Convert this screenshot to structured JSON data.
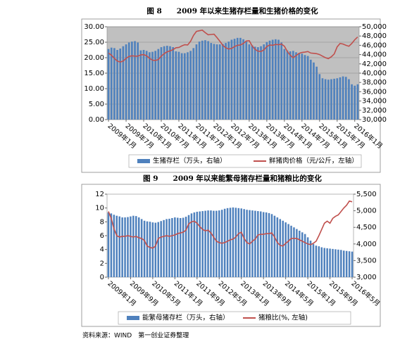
{
  "chart_data": [
    {
      "type": "combo",
      "title": "图 8　　2009 年以来生猪存栏量和生猪价格的变化",
      "categories": [
        "2009年1月",
        null,
        null,
        null,
        null,
        null,
        "2009年7月",
        null,
        null,
        null,
        null,
        null,
        "2010年1月",
        null,
        null,
        null,
        null,
        null,
        "2010年7月",
        null,
        null,
        null,
        null,
        null,
        "2011年1月",
        null,
        null,
        null,
        null,
        null,
        "2011年7月",
        null,
        null,
        null,
        null,
        null,
        "2012年1月",
        null,
        null,
        null,
        null,
        null,
        "2012年7月",
        null,
        null,
        null,
        null,
        null,
        "2013年1月",
        null,
        null,
        null,
        null,
        null,
        "2013年7月",
        null,
        null,
        null,
        null,
        null,
        "2014年1月",
        null,
        null,
        null,
        null,
        null,
        "2014年7月",
        null,
        null,
        null,
        null,
        null,
        "2015年1月",
        null,
        null,
        null,
        null,
        null,
        "2015年7月",
        null,
        null,
        null,
        null,
        null,
        "2016年1月",
        null
      ],
      "series": [
        {
          "name": "生猪存栏（万头，右轴）",
          "type": "bar",
          "axis": "y2",
          "color": "#4f81bd",
          "values": [
            45200,
            45500,
            45400,
            45000,
            45300,
            45800,
            46200,
            46600,
            46800,
            46900,
            46600,
            44900,
            45000,
            44800,
            44500,
            44600,
            44800,
            45200,
            45600,
            45800,
            45900,
            45800,
            45600,
            44700,
            44600,
            44300,
            44300,
            44500,
            44800,
            45400,
            46200,
            46800,
            47000,
            47100,
            46900,
            46500,
            46300,
            46200,
            46200,
            46300,
            46500,
            46800,
            47200,
            47400,
            47600,
            47600,
            47300,
            46800,
            46200,
            46000,
            45700,
            45600,
            45800,
            46200,
            46700,
            47000,
            47200,
            47300,
            47200,
            46600,
            45200,
            44900,
            44700,
            44800,
            44500,
            44300,
            44200,
            43900,
            43700,
            42900,
            42300,
            41400,
            39800,
            38900,
            38700,
            38600,
            38700,
            38800,
            38900,
            39100,
            39300,
            39200,
            38700,
            37600,
            37300,
            37600
          ]
        },
        {
          "name": "鲜猪肉价格（元/公斤，左轴）",
          "type": "line",
          "color": "#c0504d",
          "values": [
            21.5,
            20.8,
            19.8,
            18.9,
            18.6,
            18.9,
            19.8,
            20.4,
            20.6,
            20.5,
            20.5,
            20.9,
            21.0,
            20.6,
            19.8,
            19.2,
            19.1,
            19.4,
            20.5,
            21.3,
            21.9,
            22.2,
            22.6,
            23.2,
            23.3,
            23.8,
            24.2,
            24.1,
            25.3,
            27.2,
            28.5,
            28.7,
            28.9,
            28.1,
            27.4,
            27.5,
            27.6,
            26.5,
            25.3,
            24.0,
            23.2,
            22.8,
            23.0,
            23.6,
            24.0,
            24.1,
            24.6,
            25.4,
            25.5,
            23.8,
            22.7,
            22.1,
            22.0,
            22.5,
            23.6,
            24.1,
            24.0,
            24.3,
            24.2,
            24.4,
            23.7,
            22.0,
            20.8,
            20.0,
            20.7,
            21.4,
            21.7,
            21.8,
            22.0,
            21.5,
            21.4,
            21.3,
            21.0,
            20.5,
            20.0,
            19.7,
            20.3,
            21.2,
            23.5,
            24.6,
            24.4,
            24.0,
            23.7,
            24.6,
            25.8,
            26.7
          ]
        }
      ],
      "ylim": [
        0,
        30
      ],
      "yticks": [
        {
          "value": 0,
          "label": "0.00"
        },
        {
          "value": 5,
          "label": "5.00"
        },
        {
          "value": 10,
          "label": "10.00"
        },
        {
          "value": 15,
          "label": "15.00"
        },
        {
          "value": 20,
          "label": "20.00"
        },
        {
          "value": 25,
          "label": "25.00"
        },
        {
          "value": 30,
          "label": "30.00"
        }
      ],
      "y2lim": [
        30000,
        50000
      ],
      "y2ticks": [
        {
          "value": 30000,
          "label": "30,000"
        },
        {
          "value": 32000,
          "label": "32,000"
        },
        {
          "value": 34000,
          "label": "34,000"
        },
        {
          "value": 36000,
          "label": "36,000"
        },
        {
          "value": 38000,
          "label": "38,000"
        },
        {
          "value": 40000,
          "label": "40,000"
        },
        {
          "value": 42000,
          "label": "42,000"
        },
        {
          "value": 44000,
          "label": "44,000"
        },
        {
          "value": 46000,
          "label": "46,000"
        },
        {
          "value": 48000,
          "label": "48,000"
        },
        {
          "value": 50000,
          "label": "50,000"
        }
      ],
      "grid": true,
      "legend": "bottom"
    },
    {
      "type": "combo",
      "title": "图 9　　2009 年以来能繁母猪存栏量和猪粮比的变化",
      "categories": [
        "2009年1月",
        null,
        null,
        null,
        null,
        null,
        null,
        null,
        "2009年9月",
        null,
        null,
        null,
        null,
        null,
        null,
        null,
        "2010年5月",
        null,
        null,
        null,
        null,
        null,
        null,
        null,
        "2011年1月",
        null,
        null,
        null,
        null,
        null,
        null,
        null,
        "2011年9月",
        null,
        null,
        null,
        null,
        null,
        null,
        null,
        "2012年5月",
        null,
        null,
        null,
        null,
        null,
        null,
        null,
        "2013年1月",
        null,
        null,
        null,
        null,
        null,
        null,
        null,
        "2013年9月",
        null,
        null,
        null,
        null,
        null,
        null,
        null,
        "2014年5月",
        null,
        null,
        null,
        null,
        null,
        null,
        null,
        "2015年1月",
        null,
        null,
        null,
        null,
        null,
        null,
        null,
        "2015年9月",
        null,
        null,
        null,
        null,
        null,
        null,
        null,
        "2016年5月"
      ],
      "series": [
        {
          "name": "能繁母猪存栏（万头，右轴）",
          "type": "bar",
          "axis": "y2",
          "color": "#4f81bd",
          "values": [
            4950,
            4920,
            4880,
            4850,
            4830,
            4800,
            4800,
            4810,
            4830,
            4850,
            4840,
            4800,
            4750,
            4700,
            4680,
            4670,
            4650,
            4640,
            4660,
            4690,
            4720,
            4750,
            4760,
            4780,
            4800,
            4790,
            4780,
            4790,
            4820,
            4870,
            4920,
            4950,
            4970,
            4980,
            4990,
            5000,
            5010,
            5010,
            5000,
            5000,
            5010,
            5030,
            5060,
            5080,
            5090,
            5100,
            5090,
            5080,
            5070,
            5050,
            5030,
            5020,
            5010,
            5000,
            4990,
            4980,
            4960,
            4950,
            4930,
            4900,
            4850,
            4800,
            4750,
            4700,
            4650,
            4600,
            4550,
            4500,
            4450,
            4400,
            4350,
            4300,
            4200,
            4100,
            4000,
            3950,
            3930,
            3900,
            3880,
            3870,
            3860,
            3850,
            3840,
            3830,
            3820,
            3800,
            3790,
            3780,
            3770
          ]
        },
        {
          "name": "猪粮比(%, 左轴)",
          "type": "line",
          "color": "#c0504d",
          "values": [
            9.5,
            8.5,
            7.0,
            6.0,
            5.8,
            5.9,
            5.9,
            6.0,
            5.9,
            5.8,
            5.9,
            5.7,
            5.6,
            5.3,
            4.5,
            4.3,
            4.2,
            4.5,
            5.6,
            5.8,
            5.9,
            6.0,
            5.9,
            6.0,
            6.1,
            6.3,
            6.4,
            6.5,
            6.8,
            7.7,
            8.0,
            8.1,
            7.8,
            7.3,
            6.9,
            6.7,
            6.8,
            6.4,
            5.8,
            5.2,
            5.0,
            4.9,
            5.0,
            5.2,
            5.4,
            5.5,
            5.8,
            6.3,
            6.5,
            5.6,
            5.0,
            4.8,
            5.2,
            5.5,
            6.1,
            6.2,
            6.2,
            6.3,
            6.3,
            6.4,
            5.8,
            5.0,
            4.6,
            4.5,
            4.9,
            5.2,
            5.6,
            5.6,
            5.6,
            5.4,
            5.2,
            5.0,
            4.8,
            4.7,
            4.9,
            5.2,
            6.0,
            6.9,
            7.8,
            8.1,
            7.8,
            8.5,
            8.8,
            9.0,
            9.5,
            10.0,
            10.4,
            11.0,
            10.9
          ]
        }
      ],
      "ylim": [
        0,
        12
      ],
      "yticks": [
        0,
        2,
        4,
        6,
        8,
        10,
        12
      ],
      "y2lim": [
        3000,
        5500
      ],
      "y2ticks": [
        {
          "value": 3000,
          "label": "3,000"
        },
        {
          "value": 3500,
          "label": "3,500"
        },
        {
          "value": 4000,
          "label": "4,000"
        },
        {
          "value": 4500,
          "label": "4,500"
        },
        {
          "value": 5000,
          "label": "5,000"
        },
        {
          "value": 5500,
          "label": "5,500"
        }
      ],
      "grid": false,
      "legend": "bottom"
    }
  ],
  "source": "资料来源：WIND　第一创业证券整理"
}
